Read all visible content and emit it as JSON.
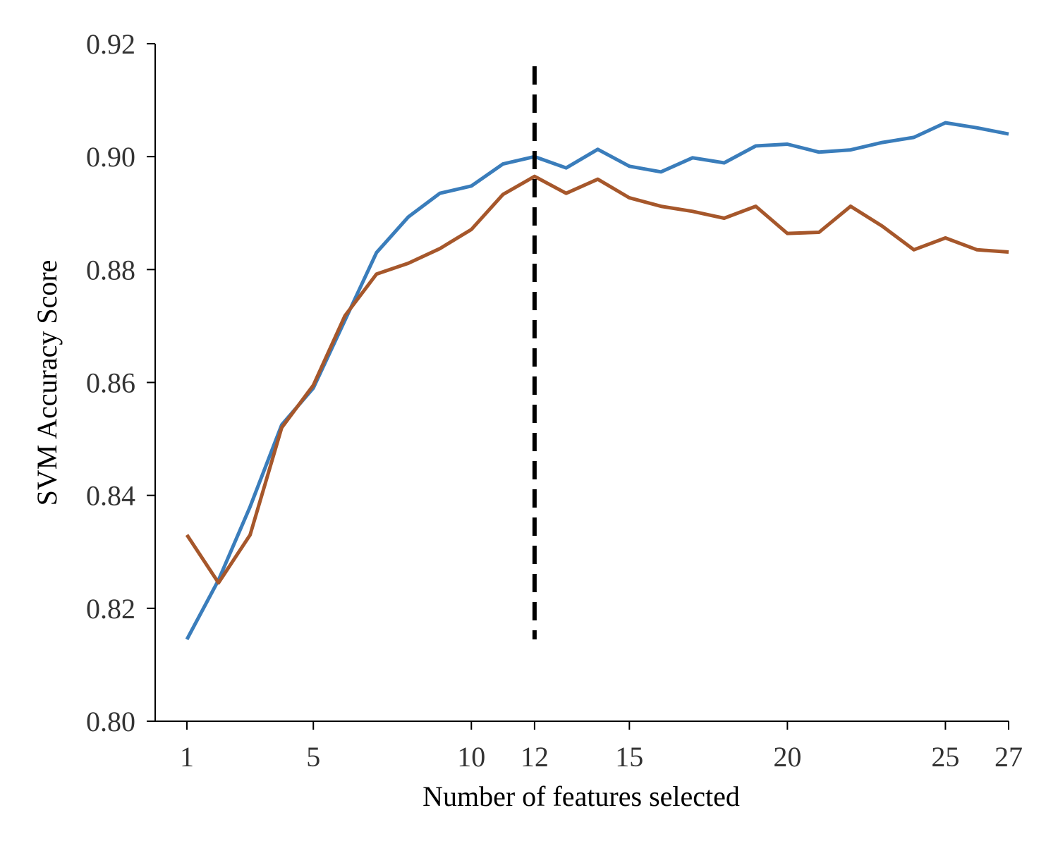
{
  "chart_data": {
    "type": "line",
    "title": "",
    "xlabel": "Number of features selected",
    "ylabel": "SVM Accuracy Score",
    "xlim": [
      0,
      27
    ],
    "ylim": [
      0.8,
      0.92
    ],
    "xticks": [
      1,
      5,
      10,
      12,
      15,
      20,
      25,
      27
    ],
    "yticks": [
      "0.80",
      "0.82",
      "0.84",
      "0.86",
      "0.88",
      "0.90",
      "0.92"
    ],
    "grid": false,
    "legend": "none",
    "x": [
      1,
      2,
      3,
      4,
      5,
      6,
      7,
      8,
      9,
      10,
      11,
      12,
      13,
      14,
      15,
      16,
      17,
      18,
      19,
      20,
      21,
      22,
      23,
      24,
      25,
      26,
      27
    ],
    "series": [
      {
        "color": "#3a7dbb",
        "values": [
          0.8145,
          0.825,
          0.838,
          0.8525,
          0.859,
          0.871,
          0.883,
          0.8893,
          0.8935,
          0.8948,
          0.8987,
          0.9,
          0.898,
          0.9013,
          0.8983,
          0.8973,
          0.8998,
          0.8989,
          0.9019,
          0.9022,
          0.9008,
          0.9012,
          0.9025,
          0.9034,
          0.906,
          0.9051,
          0.904
        ]
      },
      {
        "color": "#a6572b",
        "values": [
          0.833,
          0.8245,
          0.833,
          0.852,
          0.8595,
          0.8718,
          0.8792,
          0.8811,
          0.8837,
          0.8871,
          0.8933,
          0.8965,
          0.8935,
          0.896,
          0.8927,
          0.8912,
          0.8903,
          0.8891,
          0.8912,
          0.8864,
          0.8866,
          0.8912,
          0.8877,
          0.8835,
          0.8856,
          0.8835,
          0.8831
        ]
      }
    ],
    "reference_line": {
      "x": 12,
      "y_range": [
        0.8145,
        0.916
      ],
      "style": "dashed",
      "color": "#000000"
    }
  }
}
